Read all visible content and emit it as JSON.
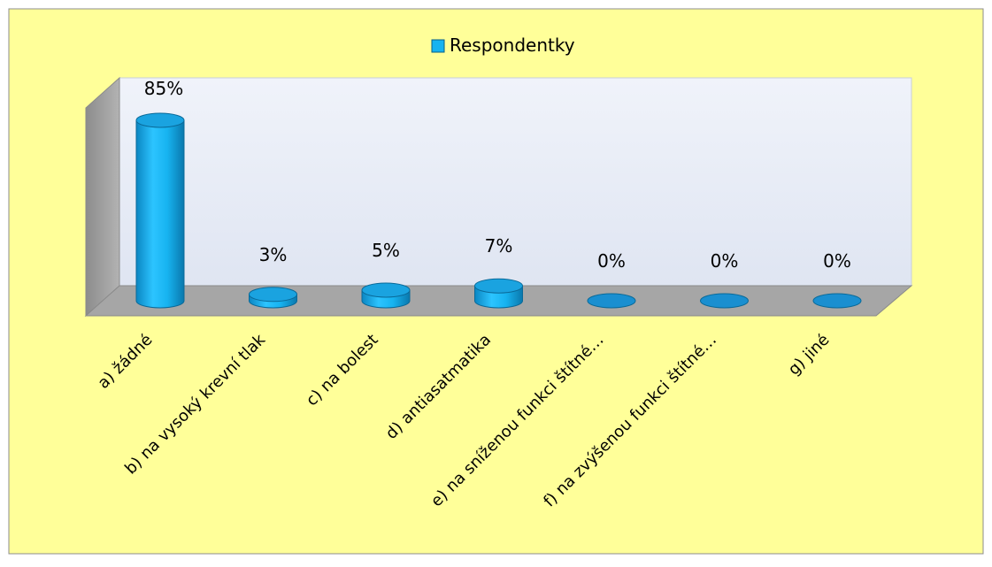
{
  "chart_data": {
    "type": "bar",
    "title": "",
    "xlabel": "",
    "ylabel": "",
    "ylim": [
      0,
      100
    ],
    "categories": [
      "a) žádné",
      "b) na vysoký krevní tlak",
      "c) na bolest",
      "d) antiasatmatika",
      "e) na sníženou funkci štítné…",
      "f) na zvýšenou funkci štítné…",
      "g) jiné"
    ],
    "series": [
      {
        "name": "Respondentky",
        "values": [
          85,
          3,
          5,
          7,
          0,
          0,
          0
        ],
        "labels": [
          "85%",
          "3%",
          "5%",
          "7%",
          "0%",
          "0%",
          "0%"
        ]
      }
    ],
    "legend": {
      "placement": "top-center"
    },
    "grid": false,
    "style": "3d-cylinder"
  },
  "colors": {
    "background": "#ffff99",
    "plot_wall": "#e8edf7",
    "floor": "#a6a6a6",
    "side_wall": "#a6a6a6",
    "bar": "#17b3f0",
    "bar_dark": "#0a7fb3",
    "bar_top": "#1a9fdc"
  }
}
